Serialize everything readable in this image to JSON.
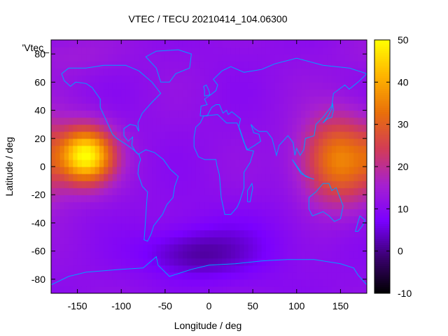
{
  "chart_data": {
    "type": "heatmap",
    "title": "VTEC / TECU 20210414_104.06300",
    "xlabel": "Longitude / deg",
    "ylabel": "Latitude / deg",
    "key_label": "'Vtec_",
    "xlim": [
      -180,
      180
    ],
    "ylim": [
      -90,
      90
    ],
    "x_ticks": [
      -150,
      -100,
      -50,
      0,
      50,
      100,
      150
    ],
    "y_ticks": [
      -80,
      -60,
      -40,
      -20,
      0,
      20,
      40,
      60,
      80
    ],
    "colorbar": {
      "range": [
        -10,
        50
      ],
      "ticks": [
        -10,
        0,
        10,
        20,
        30,
        40,
        50
      ],
      "palette": [
        "#000000",
        "#3a006f",
        "#7a00ff",
        "#a620d0",
        "#d23c56",
        "#e9700a",
        "#ffb300",
        "#ffff00"
      ]
    },
    "background_level": 11,
    "field_components": [
      {
        "lon": -140,
        "lat": 8,
        "amplitude": 38,
        "sigma_lon": 22,
        "sigma_lat": 14
      },
      {
        "lon": 148,
        "lat": 5,
        "amplitude": 24,
        "sigma_lon": 30,
        "sigma_lat": 22
      },
      {
        "lon": -20,
        "lat": -62,
        "amplitude": -8,
        "sigma_lon": 40,
        "sigma_lat": 12
      },
      {
        "lon": 40,
        "lat": -55,
        "amplitude": -3,
        "sigma_lon": 60,
        "sigma_lat": 20
      },
      {
        "lon": -150,
        "lat": 80,
        "amplitude": 3,
        "sigma_lon": 40,
        "sigma_lat": 10
      }
    ],
    "coastline_color": "#00a0ff"
  }
}
